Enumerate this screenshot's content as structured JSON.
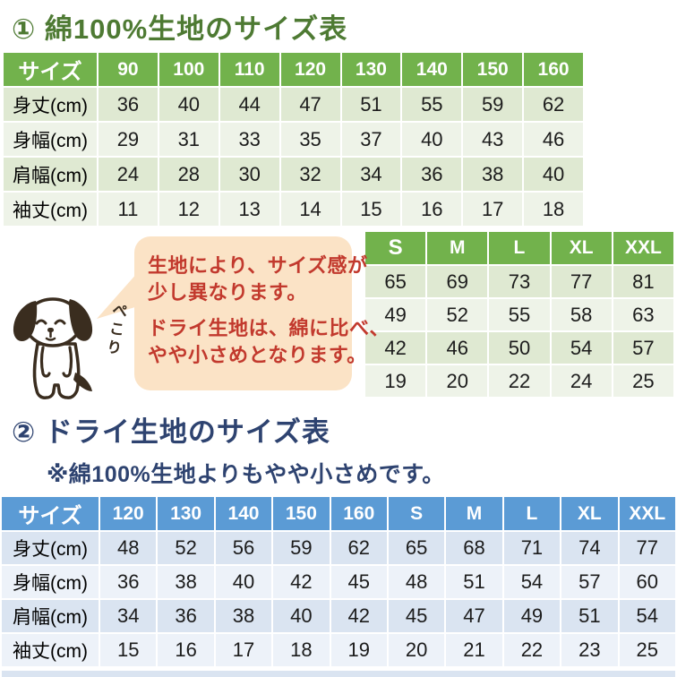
{
  "colors": {
    "green_title": "#4e7a33",
    "green_header": "#72b24c",
    "green_row_dark": "#dfe9d2",
    "green_row_light": "#eef3e8",
    "blue_header": "#5b9bd5",
    "blue_row_dark": "#dae4f1",
    "blue_row_light": "#edf2f9",
    "navy_title": "#2e4370",
    "red_text": "#c2392d",
    "bubble_bg": "#fbe3c6",
    "dog_ink": "#3a2d1f",
    "cell_text": "#1c1c1c"
  },
  "section1": {
    "title": "① 綿100%生地のサイズ表",
    "table": {
      "header": [
        "サイズ",
        "90",
        "100",
        "110",
        "120",
        "130",
        "140",
        "150",
        "160"
      ],
      "rows": [
        {
          "label": "身丈(cm)",
          "values": [
            "36",
            "40",
            "44",
            "47",
            "51",
            "55",
            "59",
            "62"
          ]
        },
        {
          "label": "身幅(cm)",
          "values": [
            "29",
            "31",
            "33",
            "35",
            "37",
            "40",
            "43",
            "46"
          ]
        },
        {
          "label": "肩幅(cm)",
          "values": [
            "24",
            "28",
            "30",
            "32",
            "34",
            "36",
            "38",
            "40"
          ]
        },
        {
          "label": "袖丈(cm)",
          "values": [
            "11",
            "12",
            "13",
            "14",
            "15",
            "16",
            "17",
            "18"
          ]
        }
      ]
    }
  },
  "adult_table": {
    "header": [
      "S",
      "M",
      "L",
      "XL",
      "XXL"
    ],
    "rows": [
      [
        "65",
        "69",
        "73",
        "77",
        "81"
      ],
      [
        "49",
        "52",
        "55",
        "58",
        "63"
      ],
      [
        "42",
        "46",
        "50",
        "54",
        "57"
      ],
      [
        "19",
        "20",
        "22",
        "24",
        "25"
      ]
    ]
  },
  "callout": {
    "line1": "生地により、サイズ感が",
    "line2": "少し異なります。",
    "line3": "ドライ生地は、綿に比べ、",
    "line4": "やや小さめとなります。",
    "dog_caption": "ぺこり"
  },
  "section2": {
    "title": "② ドライ生地のサイズ表",
    "subtitle": "※綿100%生地よりもやや小さめです。",
    "table": {
      "header": [
        "サイズ",
        "120",
        "130",
        "140",
        "150",
        "160",
        "S",
        "M",
        "L",
        "XL",
        "XXL"
      ],
      "rows": [
        {
          "label": "身丈(cm)",
          "values": [
            "48",
            "52",
            "56",
            "59",
            "62",
            "65",
            "68",
            "71",
            "74",
            "77"
          ]
        },
        {
          "label": "身幅(cm)",
          "values": [
            "36",
            "38",
            "40",
            "42",
            "45",
            "48",
            "51",
            "54",
            "57",
            "60"
          ]
        },
        {
          "label": "肩幅(cm)",
          "values": [
            "34",
            "36",
            "38",
            "40",
            "42",
            "45",
            "47",
            "49",
            "51",
            "54"
          ]
        },
        {
          "label": "袖丈(cm)",
          "values": [
            "15",
            "16",
            "17",
            "18",
            "19",
            "20",
            "21",
            "22",
            "23",
            "25"
          ]
        }
      ]
    }
  }
}
